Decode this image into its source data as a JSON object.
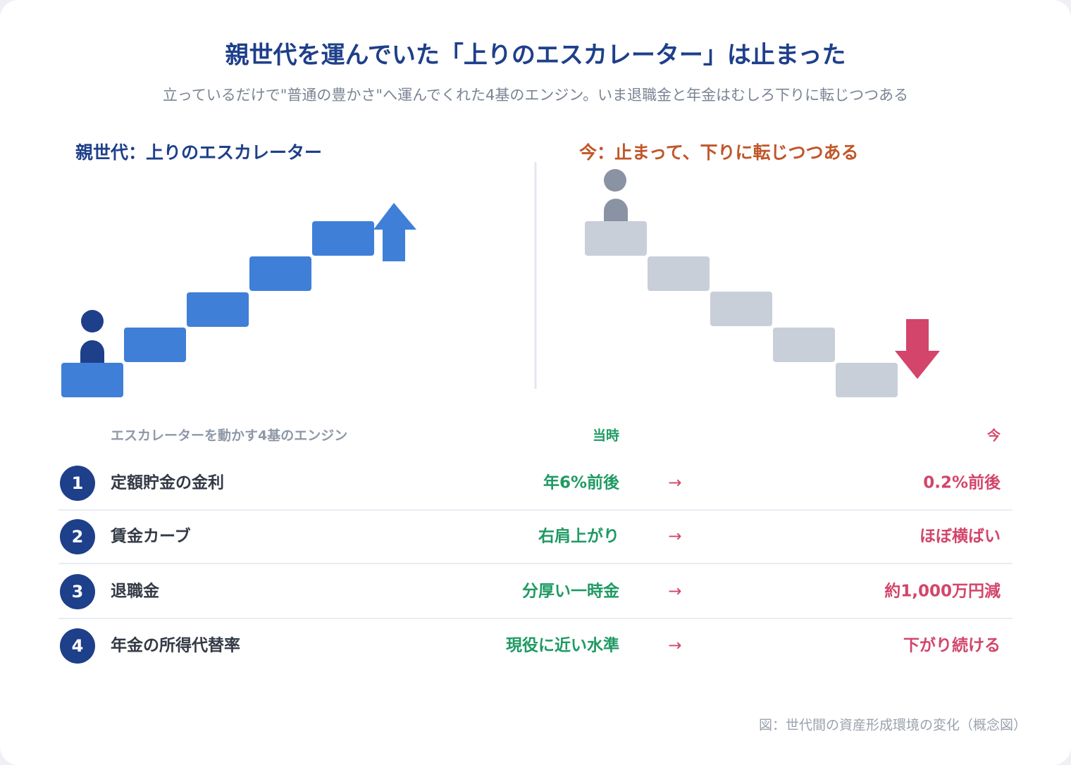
{
  "header": {
    "title": "親世代を運んでいた「上りのエスカレーター」は止まった",
    "subtitle": "立っているだけで\"普通の豊かさ\"へ運んでくれた4基のエンジン。いま退職金と年金はむしろ下りに転じつつある"
  },
  "left": {
    "label": "親世代：上りのエスカレーター"
  },
  "right": {
    "label": "今：止まって、下りに転じつつある"
  },
  "table": {
    "header": [
      "エスカレーターを動かす4基のエンジン",
      "当時",
      "今"
    ],
    "arrow": "→",
    "rows": [
      {
        "number": "1",
        "name": "定額貯金の金利",
        "then": "年6%前後",
        "now": "0.2%前後"
      },
      {
        "number": "2",
        "name": "賃金カーブ",
        "then": "右肩上がり",
        "now": "ほぼ横ばい"
      },
      {
        "number": "3",
        "name": "退職金",
        "then": "分厚い一時金",
        "now": "約1,000万円減"
      },
      {
        "number": "4",
        "name": "年金の所得代替率",
        "then": "現役に近い水準",
        "now": "下がり続ける"
      }
    ]
  },
  "footer": {
    "caption": "図：世代間の資産形成環境の変化（概念図）"
  }
}
